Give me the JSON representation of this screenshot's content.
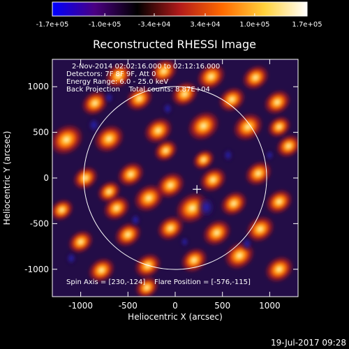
{
  "chart_data": {
    "type": "heatmap",
    "title": "Reconstructed RHESSI Image",
    "xlabel": "Heliocentric X (arcsec)",
    "ylabel": "Heliocentric Y (arcsec)",
    "xlim": [
      -1300,
      1300
    ],
    "ylim": [
      -1300,
      1300
    ],
    "xticks": [
      -1000,
      -500,
      0,
      500,
      1000
    ],
    "yticks": [
      -1000,
      -500,
      0,
      500,
      1000
    ],
    "colorbar": {
      "min": -170000,
      "max": 170000,
      "tick_labels": [
        "-1.7e+05",
        "-1.0e+05",
        "-3.4e+04",
        "3.4e+04",
        "1.0e+05",
        "1.7e+05"
      ],
      "colormap": [
        "#0000ff",
        "#4b0082",
        "#000000",
        "#b21a1a",
        "#ff6a00",
        "#ffd23c",
        "#ffffff"
      ]
    },
    "annotations": [
      "2-Nov-2014 02:02:16.000 to 02:12:16.000",
      "Detectors: 7F 8F 9F, Att 0",
      "Energy Range: 6.0 - 25.0 keV",
      "Back Projection    Total counts: 8.87E+04",
      "Spin Axis = [230,-124]    Flare Position = [-576,-115]"
    ],
    "solar_disk": {
      "center": [
        0,
        0
      ],
      "radius": 968
    },
    "marker": {
      "symbol": "+",
      "position": [
        230,
        -124
      ]
    },
    "pattern": {
      "background_color": "#230d47",
      "blobs": [
        [
          -1150,
          420,
          1
        ],
        [
          -700,
          430,
          0.9
        ],
        [
          -180,
          520,
          0.85
        ],
        [
          300,
          570,
          0.95
        ],
        [
          770,
          560,
          0.9
        ],
        [
          -600,
          1120,
          0.8
        ],
        [
          -120,
          1170,
          0.8
        ],
        [
          380,
          1110,
          0.85
        ],
        [
          850,
          1100,
          0.8
        ],
        [
          -850,
          820,
          0.8
        ],
        [
          -380,
          870,
          0.8
        ],
        [
          100,
          920,
          0.8
        ],
        [
          600,
          860,
          0.8
        ],
        [
          1080,
          830,
          0.8
        ],
        [
          -950,
          0,
          0.75
        ],
        [
          -470,
          40,
          0.8
        ],
        [
          -50,
          -80,
          0.85
        ],
        [
          400,
          -20,
          0.8
        ],
        [
          880,
          50,
          0.8
        ],
        [
          -620,
          -330,
          0.8
        ],
        [
          -280,
          -220,
          0.9
        ],
        [
          180,
          -330,
          1
        ],
        [
          620,
          -280,
          0.8
        ],
        [
          1100,
          -260,
          0.8
        ],
        [
          -1000,
          -700,
          0.75
        ],
        [
          -500,
          -620,
          0.8
        ],
        [
          -50,
          -550,
          0.8
        ],
        [
          440,
          -600,
          0.85
        ],
        [
          900,
          -560,
          0.85
        ],
        [
          -780,
          -1010,
          0.8
        ],
        [
          -290,
          -960,
          0.8
        ],
        [
          200,
          -900,
          0.8
        ],
        [
          680,
          -850,
          0.9
        ],
        [
          1100,
          -1000,
          0.85
        ],
        [
          -1200,
          -350,
          0.7
        ],
        [
          1200,
          350,
          0.75
        ],
        [
          -100,
          300,
          0.7
        ],
        [
          -700,
          -150,
          0.7
        ],
        [
          300,
          200,
          0.65
        ],
        [
          -300,
          -1200,
          0.7
        ],
        [
          1100,
          560,
          0.7
        ]
      ],
      "dark_spots": [
        [
          330,
          -320,
          1
        ],
        [
          -860,
          580,
          0.7
        ],
        [
          -80,
          760,
          0.6
        ],
        [
          560,
          250,
          0.6
        ],
        [
          -420,
          -460,
          0.6
        ],
        [
          760,
          -720,
          0.6
        ],
        [
          -700,
          880,
          0.55
        ],
        [
          -1100,
          -880,
          0.6
        ],
        [
          100,
          -700,
          0.5
        ],
        [
          1000,
          250,
          0.5
        ]
      ]
    }
  },
  "footer": {
    "timestamp": "19-Jul-2017 09:28"
  }
}
